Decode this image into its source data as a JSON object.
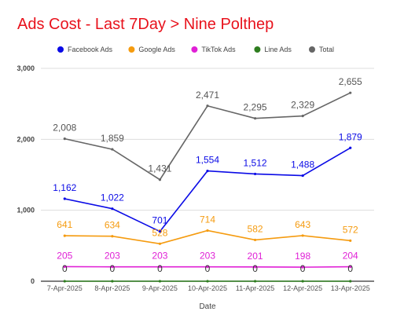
{
  "title": "Ads Cost - Last 7Day > Nine Polthep",
  "chart_data": {
    "type": "line",
    "title": "Ads Cost - Last 7Day > Nine Polthep",
    "xlabel": "Date",
    "ylabel": "",
    "ylim": [
      0,
      3000
    ],
    "yticks": [
      0,
      1000,
      2000,
      3000
    ],
    "ytick_labels": [
      "0",
      "1,000",
      "2,000",
      "3,000"
    ],
    "grid": true,
    "legend_position": "top",
    "categories": [
      "7-Apr-2025",
      "8-Apr-2025",
      "9-Apr-2025",
      "10-Apr-2025",
      "11-Apr-2025",
      "12-Apr-2025",
      "13-Apr-2025"
    ],
    "series": [
      {
        "name": "Facebook Ads",
        "color": "#0a0ae6",
        "values": [
          1162,
          1022,
          701,
          1554,
          1512,
          1488,
          1879
        ],
        "labels": [
          "1,162",
          "1,022",
          "701",
          "1,554",
          "1,512",
          "1,488",
          "1,879"
        ]
      },
      {
        "name": "Google Ads",
        "color": "#f59b0f",
        "values": [
          641,
          634,
          528,
          714,
          582,
          643,
          572
        ],
        "labels": [
          "641",
          "634",
          "528",
          "714",
          "582",
          "643",
          "572"
        ]
      },
      {
        "name": "TikTok Ads",
        "color": "#e020d6",
        "values": [
          205,
          203,
          203,
          203,
          201,
          198,
          204
        ],
        "labels": [
          "205",
          "203",
          "203",
          "203",
          "201",
          "198",
          "204"
        ]
      },
      {
        "name": "Line Ads",
        "color": "#2e7d1f",
        "values": [
          0,
          0,
          0,
          0,
          0,
          0,
          0
        ],
        "labels": [
          "0",
          "0",
          "0",
          "0",
          "0",
          "0",
          "0"
        ]
      },
      {
        "name": "Total",
        "color": "#666666",
        "values": [
          2008,
          1859,
          1431,
          2471,
          2295,
          2329,
          2655
        ],
        "labels": [
          "2,008",
          "1,859",
          "1,431",
          "2,471",
          "2,295",
          "2,329",
          "2,655"
        ]
      }
    ]
  }
}
